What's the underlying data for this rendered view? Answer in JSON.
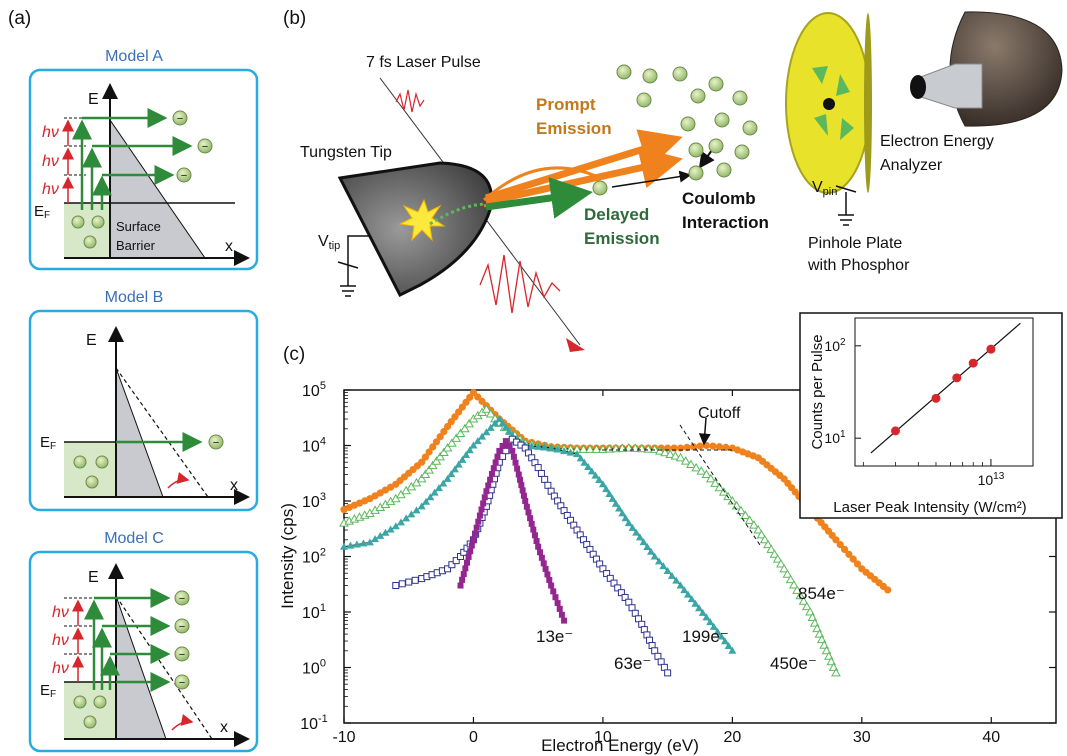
{
  "panel_labels": {
    "a": "(a)",
    "b": "(b)",
    "c": "(c)"
  },
  "panel_a": {
    "model_a": {
      "title": "Model A",
      "e_label": "E",
      "x_label": "x",
      "ef_main": "E",
      "ef_sub": "F",
      "hv_label": "hν",
      "barrier_line1": "Surface",
      "barrier_line2": "Barrier"
    },
    "model_b": {
      "title": "Model B",
      "e_label": "E",
      "x_label": "x",
      "ef_main": "E",
      "ef_sub": "F"
    },
    "model_c": {
      "title": "Model C",
      "e_label": "E",
      "x_label": "x",
      "ef_main": "E",
      "ef_sub": "F",
      "hv_label": "hν"
    },
    "electron_symbol": "−"
  },
  "panel_b": {
    "laser_label": "7 fs Laser Pulse",
    "tip_label": "Tungsten Tip",
    "vtip_main": "V",
    "vtip_sub": "tip",
    "prompt_line1": "Prompt",
    "prompt_line2": "Emission",
    "delayed_line1": "Delayed",
    "delayed_line2": "Emission",
    "coulomb_line1": "Coulomb",
    "coulomb_line2": "Interaction",
    "analyzer_line1": "Electron Energy",
    "analyzer_line2": "Analyzer",
    "vpin_main": "V",
    "vpin_sub": "pin",
    "pinhole_line1": "Pinhole Plate",
    "pinhole_line2": "with Phosphor"
  },
  "colors": {
    "box": "#29aae1",
    "title": "#3b6fb6",
    "green": "#2e8b3a",
    "red": "#d7262c",
    "orange": "#f0821e",
    "teal": "#3aa6a6",
    "lightgreen": "#5cb85c",
    "navy": "#2e3192",
    "purple": "#93278f"
  },
  "chart_data": [
    {
      "type": "scatter",
      "xlabel": "Electron Energy (eV)",
      "ylabel": "Intensity (cps)",
      "xlim": [
        -10,
        45
      ],
      "ylim_log10": [
        -1,
        5
      ],
      "y_scale": "log",
      "x_ticks": [
        "-10",
        "0",
        "10",
        "20",
        "30",
        "40"
      ],
      "y_ticks": [
        {
          "base": "10",
          "exp": "-1"
        },
        {
          "base": "10",
          "exp": "0"
        },
        {
          "base": "10",
          "exp": "1"
        },
        {
          "base": "10",
          "exp": "2"
        },
        {
          "base": "10",
          "exp": "3"
        },
        {
          "base": "10",
          "exp": "4"
        },
        {
          "base": "10",
          "exp": "5"
        }
      ],
      "cutoff_label": "Cutoff",
      "series": [
        {
          "name": "854e⁻",
          "color": "#f0821e",
          "marker": "circle-filled",
          "x": [
            -10,
            -8,
            -6,
            -4,
            -2,
            0,
            2,
            4,
            6,
            8,
            10,
            12,
            14,
            16,
            18,
            20,
            22,
            24,
            26,
            28,
            30,
            32
          ],
          "y": [
            700,
            1100,
            2000,
            5000,
            22000,
            90000,
            30000,
            12000,
            9500,
            9000,
            9000,
            9000,
            9000,
            9000,
            10000,
            9000,
            6000,
            2500,
            700,
            200,
            60,
            25
          ]
        },
        {
          "name": "450e⁻",
          "color": "#5cb85c",
          "marker": "triangle-open",
          "x": [
            -10,
            -8,
            -6,
            -4,
            -2,
            0,
            1,
            2,
            4,
            6,
            8,
            10,
            12,
            14,
            16,
            18,
            20,
            22,
            24,
            26,
            28
          ],
          "y": [
            400,
            600,
            1100,
            2500,
            9000,
            30000,
            45000,
            25000,
            11000,
            9000,
            8500,
            8500,
            9000,
            8500,
            6000,
            3000,
            1000,
            300,
            60,
            10,
            0.8
          ]
        },
        {
          "name": "199e⁻",
          "color": "#3aa6a6",
          "marker": "triangle-filled",
          "x": [
            -10,
            -8,
            -6,
            -4,
            -2,
            0,
            2,
            3,
            4,
            6,
            8,
            10,
            12,
            14,
            16,
            18,
            20
          ],
          "y": [
            150,
            180,
            350,
            800,
            2500,
            10000,
            30000,
            15000,
            10000,
            9000,
            7000,
            2000,
            400,
            100,
            30,
            8,
            2
          ]
        },
        {
          "name": "63e⁻",
          "color": "#2e3192",
          "marker": "square-open",
          "x": [
            -6,
            -4,
            -2,
            -1,
            0,
            1,
            2,
            3,
            4,
            5,
            6,
            8,
            10,
            12,
            13,
            14,
            15
          ],
          "y": [
            30,
            40,
            60,
            100,
            200,
            800,
            5000,
            13000,
            9000,
            4000,
            1500,
            300,
            60,
            15,
            6,
            2,
            0.8
          ]
        },
        {
          "name": "13e⁻",
          "color": "#93278f",
          "marker": "square-filled",
          "x": [
            -1,
            0,
            1,
            2,
            2.5,
            3,
            3.5,
            4,
            5,
            6,
            7
          ],
          "y": [
            30,
            200,
            1500,
            8000,
            12000,
            8000,
            3000,
            1000,
            150,
            30,
            7
          ]
        }
      ],
      "series_labels": [
        "854e⁻",
        "450e⁻",
        "199e⁻",
        "63e⁻",
        "13e⁻"
      ]
    },
    {
      "type": "scatter",
      "title": "",
      "xlabel": "Laser Peak Intensity (W/cm²)",
      "ylabel": "Counts per Pulse",
      "x_scale": "log",
      "y_scale": "log",
      "x_tick": {
        "base": "10",
        "exp": "13"
      },
      "y_ticks": [
        {
          "base": "10",
          "exp": "1"
        },
        {
          "base": "10",
          "exp": "2"
        }
      ],
      "points_x_1e13": [
        0.3,
        0.5,
        0.65,
        0.8,
        1.0
      ],
      "points_y": [
        12,
        27,
        45,
        65,
        92
      ]
    }
  ]
}
